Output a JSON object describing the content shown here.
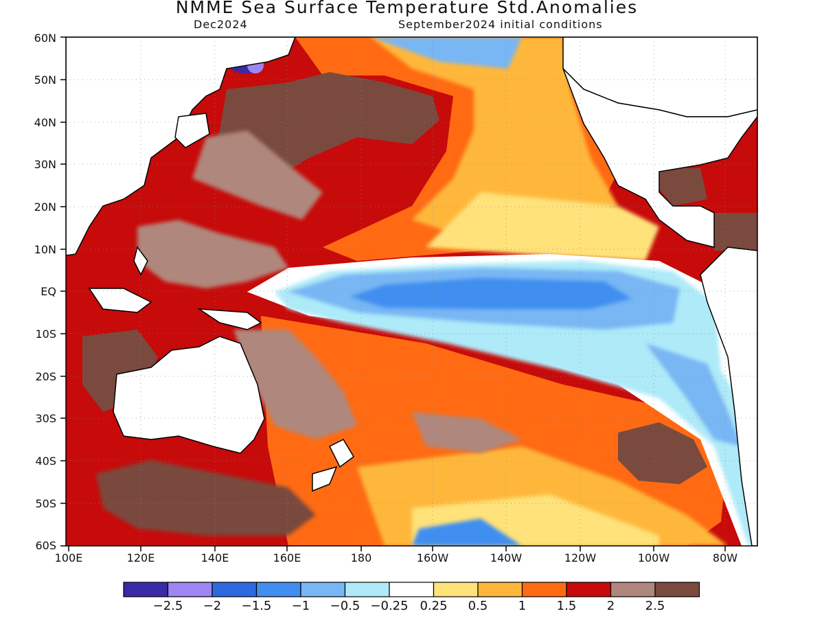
{
  "title": "NMME Sea Surface Temperature Std.Anomalies",
  "subtitle_left": "Dec2024",
  "subtitle_right": "September2024 initial conditions",
  "lat_labels": [
    "60N",
    "50N",
    "40N",
    "30N",
    "20N",
    "10N",
    "EQ",
    "10S",
    "20S",
    "30S",
    "40S",
    "50S",
    "60S"
  ],
  "lon_labels": [
    "100E",
    "120E",
    "140E",
    "160E",
    "180",
    "160W",
    "140W",
    "120W",
    "100W",
    "80W"
  ],
  "colorbar": {
    "colors": [
      "#3a2aa8",
      "#9d85f2",
      "#2e69e0",
      "#3f8ef0",
      "#78b6f4",
      "#aeeaf8",
      "#ffffff",
      "#ffe27a",
      "#ffb73a",
      "#ff6a12",
      "#c70a0a",
      "#b0877c",
      "#7a4a3e"
    ],
    "labels": [
      "−2.5",
      "−2",
      "−1.5",
      "−1",
      "−0.5",
      "−0.25",
      "0.25",
      "0.5",
      "1",
      "1.5",
      "2",
      "2.5"
    ]
  },
  "map": {
    "lon_range": [
      "100E",
      "70W"
    ],
    "lat_range": [
      "60S",
      "60N"
    ],
    "background": "#c70a0a"
  }
}
